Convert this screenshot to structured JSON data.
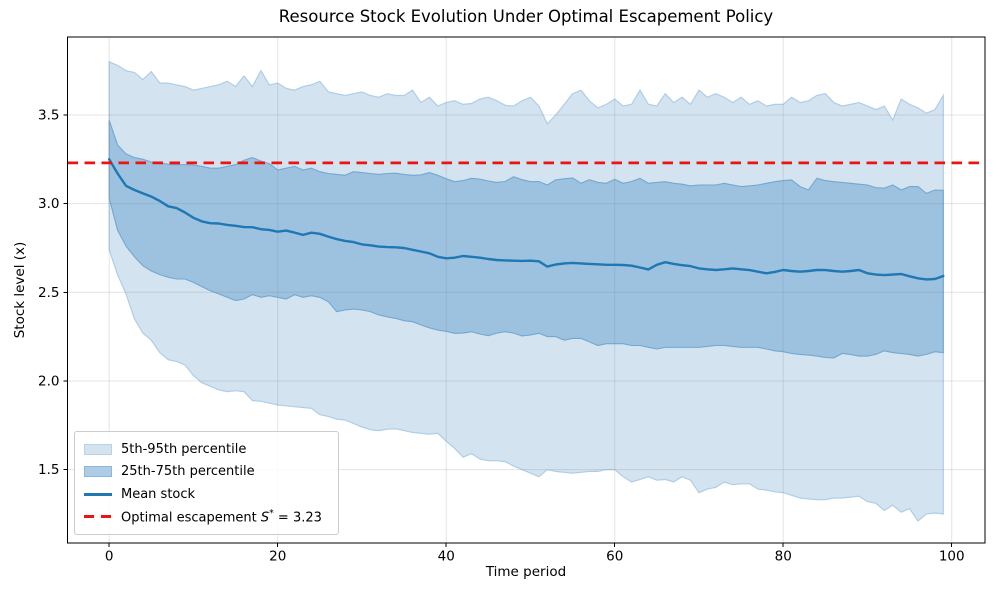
{
  "figure": {
    "title": "Resource Stock Evolution Under Optimal Escapement Policy",
    "xlabel": "Time period",
    "ylabel": "Stock level (x)"
  },
  "legend": {
    "items": [
      {
        "type": "patch",
        "label": "5th-95th percentile",
        "color": "#d3e3f0",
        "edge": "#b9d2e8"
      },
      {
        "type": "patch",
        "label": "25th-75th percentile",
        "color": "#aecce5",
        "edge": "#8db7d8"
      },
      {
        "type": "line",
        "label": "Mean stock",
        "color": "#1f77b4"
      },
      {
        "type": "dashed",
        "label": "Optimal escapement S* = 3.23",
        "color": "#ee1211"
      }
    ]
  },
  "chart_data": {
    "type": "area",
    "title": "Resource Stock Evolution Under Optimal Escapement Policy",
    "xlabel": "Time period",
    "ylabel": "Stock level (x)",
    "x_start": 0,
    "x_step": 1,
    "n_points": 100,
    "xlim": [
      -4.95,
      103.95
    ],
    "ylim": [
      1.086,
      3.94
    ],
    "x_ticks": [
      0,
      20,
      40,
      60,
      80,
      100
    ],
    "y_ticks": [
      1.5,
      2.0,
      2.5,
      3.0,
      3.5
    ],
    "grid": true,
    "legend_position": "lower-left",
    "optimal_escapement": 3.23,
    "colors": {
      "band_outer": "#d3e3f0",
      "band_outer_edge": "#aecde8",
      "band_inner": "#9cc2e0",
      "band_inner_edge": "#74a7cf",
      "mean_line": "#1f77b4",
      "escapement_line": "#ee1211",
      "grid_line": "rgba(130,130,130,0.22)",
      "spine": "#000000"
    },
    "series": [
      {
        "name": "5th percentile",
        "values": [
          2.74,
          2.6,
          2.49,
          2.35,
          2.27,
          2.23,
          2.16,
          2.12,
          2.11,
          2.09,
          2.03,
          1.99,
          1.97,
          1.95,
          1.94,
          1.945,
          1.94,
          1.89,
          1.885,
          1.875,
          1.865,
          1.86,
          1.855,
          1.85,
          1.846,
          1.81,
          1.8,
          1.785,
          1.78,
          1.76,
          1.74,
          1.725,
          1.72,
          1.728,
          1.73,
          1.72,
          1.71,
          1.705,
          1.7,
          1.705,
          1.66,
          1.62,
          1.57,
          1.59,
          1.56,
          1.55,
          1.55,
          1.545,
          1.52,
          1.5,
          1.48,
          1.46,
          1.5,
          1.49,
          1.485,
          1.48,
          1.485,
          1.49,
          1.49,
          1.5,
          1.5,
          1.46,
          1.43,
          1.445,
          1.46,
          1.44,
          1.445,
          1.43,
          1.46,
          1.44,
          1.37,
          1.39,
          1.4,
          1.43,
          1.415,
          1.42,
          1.42,
          1.39,
          1.385,
          1.375,
          1.37,
          1.355,
          1.34,
          1.335,
          1.33,
          1.33,
          1.34,
          1.34,
          1.345,
          1.35,
          1.32,
          1.31,
          1.27,
          1.3,
          1.26,
          1.28,
          1.21,
          1.25,
          1.255,
          1.25
        ]
      },
      {
        "name": "25th percentile",
        "values": [
          3.03,
          2.85,
          2.76,
          2.7,
          2.65,
          2.62,
          2.6,
          2.585,
          2.575,
          2.575,
          2.556,
          2.532,
          2.509,
          2.491,
          2.472,
          2.453,
          2.462,
          2.487,
          2.472,
          2.481,
          2.472,
          2.462,
          2.487,
          2.472,
          2.481,
          2.472,
          2.447,
          2.391,
          2.4,
          2.405,
          2.4,
          2.391,
          2.372,
          2.362,
          2.353,
          2.34,
          2.334,
          2.316,
          2.3,
          2.287,
          2.28,
          2.269,
          2.27,
          2.278,
          2.265,
          2.255,
          2.27,
          2.278,
          2.27,
          2.254,
          2.26,
          2.269,
          2.25,
          2.25,
          2.23,
          2.24,
          2.24,
          2.22,
          2.2,
          2.21,
          2.21,
          2.21,
          2.2,
          2.2,
          2.19,
          2.18,
          2.19,
          2.19,
          2.19,
          2.19,
          2.19,
          2.195,
          2.2,
          2.2,
          2.195,
          2.19,
          2.19,
          2.19,
          2.18,
          2.17,
          2.165,
          2.155,
          2.15,
          2.146,
          2.14,
          2.132,
          2.13,
          2.155,
          2.15,
          2.14,
          2.14,
          2.15,
          2.17,
          2.16,
          2.155,
          2.15,
          2.14,
          2.15,
          2.165,
          2.16
        ]
      },
      {
        "name": "Mean stock",
        "values": [
          3.25,
          3.17,
          3.1,
          3.077,
          3.058,
          3.04,
          3.015,
          2.985,
          2.975,
          2.95,
          2.92,
          2.9,
          2.89,
          2.888,
          2.88,
          2.875,
          2.868,
          2.867,
          2.856,
          2.852,
          2.842,
          2.848,
          2.837,
          2.824,
          2.836,
          2.83,
          2.814,
          2.8,
          2.79,
          2.783,
          2.77,
          2.765,
          2.758,
          2.755,
          2.754,
          2.75,
          2.74,
          2.73,
          2.72,
          2.7,
          2.692,
          2.695,
          2.705,
          2.7,
          2.695,
          2.688,
          2.682,
          2.68,
          2.678,
          2.677,
          2.678,
          2.675,
          2.645,
          2.657,
          2.663,
          2.666,
          2.663,
          2.66,
          2.658,
          2.655,
          2.655,
          2.654,
          2.65,
          2.64,
          2.629,
          2.655,
          2.67,
          2.66,
          2.653,
          2.648,
          2.635,
          2.63,
          2.626,
          2.63,
          2.635,
          2.63,
          2.625,
          2.616,
          2.607,
          2.615,
          2.626,
          2.62,
          2.616,
          2.62,
          2.626,
          2.625,
          2.62,
          2.616,
          2.62,
          2.626,
          2.607,
          2.6,
          2.597,
          2.6,
          2.603,
          2.59,
          2.579,
          2.573,
          2.575,
          2.592
        ]
      },
      {
        "name": "75th percentile",
        "values": [
          3.47,
          3.33,
          3.28,
          3.26,
          3.25,
          3.235,
          3.23,
          3.222,
          3.22,
          3.22,
          3.218,
          3.21,
          3.2,
          3.2,
          3.21,
          3.22,
          3.245,
          3.26,
          3.24,
          3.225,
          3.19,
          3.2,
          3.21,
          3.19,
          3.2,
          3.18,
          3.17,
          3.165,
          3.16,
          3.18,
          3.175,
          3.17,
          3.165,
          3.17,
          3.172,
          3.165,
          3.16,
          3.162,
          3.175,
          3.16,
          3.14,
          3.124,
          3.13,
          3.143,
          3.138,
          3.128,
          3.12,
          3.125,
          3.152,
          3.135,
          3.124,
          3.125,
          3.105,
          3.134,
          3.14,
          3.145,
          3.115,
          3.135,
          3.12,
          3.115,
          3.137,
          3.115,
          3.125,
          3.143,
          3.115,
          3.12,
          3.124,
          3.115,
          3.11,
          3.1,
          3.105,
          3.105,
          3.105,
          3.115,
          3.105,
          3.096,
          3.1,
          3.105,
          3.115,
          3.124,
          3.13,
          3.134,
          3.096,
          3.077,
          3.143,
          3.13,
          3.124,
          3.12,
          3.115,
          3.11,
          3.105,
          3.09,
          3.087,
          3.105,
          3.077,
          3.096,
          3.096,
          3.058,
          3.077,
          3.075
        ]
      },
      {
        "name": "95th percentile",
        "values": [
          3.8,
          3.78,
          3.75,
          3.74,
          3.7,
          3.745,
          3.68,
          3.68,
          3.67,
          3.66,
          3.64,
          3.65,
          3.66,
          3.67,
          3.69,
          3.66,
          3.72,
          3.66,
          3.75,
          3.67,
          3.68,
          3.65,
          3.64,
          3.66,
          3.67,
          3.69,
          3.63,
          3.62,
          3.61,
          3.62,
          3.63,
          3.61,
          3.6,
          3.62,
          3.61,
          3.61,
          3.64,
          3.57,
          3.6,
          3.55,
          3.57,
          3.58,
          3.56,
          3.565,
          3.59,
          3.6,
          3.58,
          3.555,
          3.55,
          3.58,
          3.6,
          3.55,
          3.45,
          3.5,
          3.56,
          3.62,
          3.64,
          3.58,
          3.54,
          3.56,
          3.59,
          3.55,
          3.56,
          3.64,
          3.56,
          3.55,
          3.62,
          3.57,
          3.6,
          3.56,
          3.64,
          3.6,
          3.62,
          3.6,
          3.57,
          3.6,
          3.56,
          3.58,
          3.55,
          3.56,
          3.56,
          3.6,
          3.57,
          3.58,
          3.61,
          3.62,
          3.57,
          3.55,
          3.56,
          3.57,
          3.55,
          3.53,
          3.55,
          3.47,
          3.59,
          3.56,
          3.54,
          3.51,
          3.53,
          3.61
        ]
      }
    ]
  }
}
